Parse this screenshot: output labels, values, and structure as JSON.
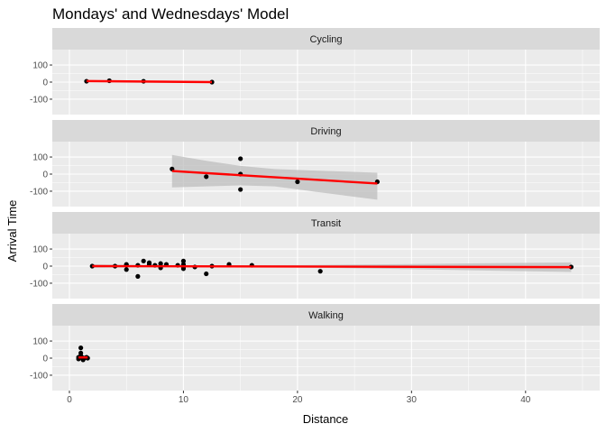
{
  "chart_data": {
    "type": "scatter",
    "title": "Mondays' and Wednesdays' Model",
    "xlabel": "Distance",
    "ylabel": "Arrival Time",
    "xlim": [
      -1.5,
      46.5
    ],
    "ylim": [
      -190,
      190
    ],
    "x_ticks": [
      0,
      10,
      20,
      30,
      40
    ],
    "y_ticks": [
      -100,
      0,
      100
    ],
    "colors": {
      "points": "#000000",
      "fit_line": "#ff0000",
      "ribbon": "#bdbdbd",
      "panel_bg": "#ebebeb",
      "strip_bg": "#d9d9d9",
      "grid": "#ffffff"
    },
    "panels": [
      {
        "label": "Cycling",
        "points": [
          [
            1.5,
            5
          ],
          [
            3.5,
            8
          ],
          [
            6.5,
            5
          ],
          [
            12.5,
            0
          ]
        ],
        "fit": {
          "x0": 1.5,
          "x1": 12.5,
          "y0": 6,
          "y1": 0
        },
        "ribbon": []
      },
      {
        "label": "Driving",
        "points": [
          [
            9,
            30
          ],
          [
            12,
            -15
          ],
          [
            15,
            90
          ],
          [
            15,
            0
          ],
          [
            15,
            -90
          ],
          [
            20,
            -45
          ],
          [
            27,
            -45
          ]
        ],
        "fit": {
          "x0": 9,
          "x1": 27,
          "y0": 18,
          "y1": -55
        },
        "ribbon": [
          [
            9,
            112,
            -78
          ],
          [
            12,
            78,
            -72
          ],
          [
            15,
            48,
            -66
          ],
          [
            18,
            30,
            -72
          ],
          [
            21,
            22,
            -98
          ],
          [
            24,
            15,
            -124
          ],
          [
            27,
            8,
            -150
          ]
        ]
      },
      {
        "label": "Transit",
        "points": [
          [
            2,
            0
          ],
          [
            4,
            0
          ],
          [
            5,
            5
          ],
          [
            5,
            -20
          ],
          [
            5,
            10
          ],
          [
            6,
            5
          ],
          [
            6,
            -60
          ],
          [
            6.5,
            30
          ],
          [
            7,
            20
          ],
          [
            7,
            10
          ],
          [
            7.5,
            5
          ],
          [
            8,
            0
          ],
          [
            8,
            -10
          ],
          [
            8,
            15
          ],
          [
            8.5,
            10
          ],
          [
            9.5,
            5
          ],
          [
            10,
            30
          ],
          [
            10,
            -15
          ],
          [
            10,
            -5
          ],
          [
            10,
            10
          ],
          [
            11,
            -5
          ],
          [
            12,
            -45
          ],
          [
            12.5,
            0
          ],
          [
            14,
            10
          ],
          [
            16,
            5
          ],
          [
            22,
            -30
          ],
          [
            44,
            -5
          ]
        ],
        "fit": {
          "x0": 2,
          "x1": 44,
          "y0": 0,
          "y1": -6
        },
        "ribbon": [
          [
            2,
            10,
            -10
          ],
          [
            10,
            5,
            -5
          ],
          [
            20,
            6,
            -8
          ],
          [
            30,
            12,
            -18
          ],
          [
            38,
            18,
            -28
          ],
          [
            44,
            22,
            -34
          ]
        ]
      },
      {
        "label": "Walking",
        "points": [
          [
            0.8,
            5
          ],
          [
            0.8,
            -5
          ],
          [
            1,
            15
          ],
          [
            1,
            60
          ],
          [
            1,
            30
          ],
          [
            1.1,
            5
          ],
          [
            1.2,
            -10
          ],
          [
            1.3,
            0
          ],
          [
            1.5,
            5
          ],
          [
            1.6,
            0
          ]
        ],
        "fit": {
          "x0": 0.8,
          "x1": 1.6,
          "y0": 4,
          "y1": 4
        },
        "ribbon": [
          [
            0.8,
            18,
            -8
          ],
          [
            1.2,
            12,
            -4
          ],
          [
            1.6,
            18,
            -8
          ]
        ]
      }
    ]
  }
}
